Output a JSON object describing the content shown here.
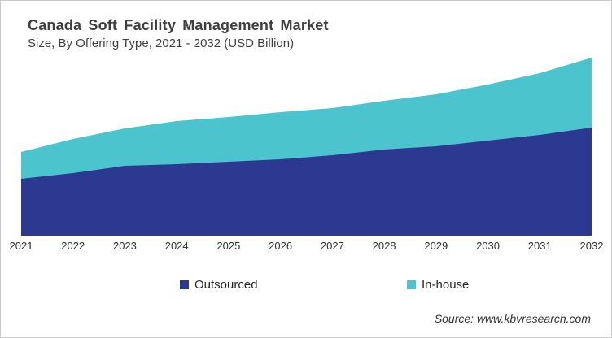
{
  "footer": {
    "source": "Source: www.kbvresearch.com"
  },
  "chart_data": {
    "type": "area",
    "stacked": true,
    "title": "Canada Soft Facility Management Market",
    "subtitle": "Size, By Offering Type, 2021 - 2032 (USD Billion)",
    "categories": [
      "2021",
      "2022",
      "2023",
      "2024",
      "2025",
      "2026",
      "2027",
      "2028",
      "2029",
      "2030",
      "2031",
      "2032"
    ],
    "series": [
      {
        "name": "Outsourced",
        "color": "#2B3A90",
        "values": [
          0.7,
          0.77,
          0.86,
          0.88,
          0.91,
          0.94,
          0.99,
          1.06,
          1.1,
          1.17,
          1.24,
          1.33
        ]
      },
      {
        "name": "In-house",
        "color": "#4BC4CD",
        "values": [
          0.33,
          0.42,
          0.46,
          0.53,
          0.55,
          0.58,
          0.58,
          0.6,
          0.64,
          0.69,
          0.76,
          0.86
        ]
      }
    ],
    "stacked_totals": [
      1.03,
      1.19,
      1.32,
      1.41,
      1.46,
      1.52,
      1.57,
      1.66,
      1.74,
      1.86,
      2.0,
      2.19
    ],
    "xlabel": "",
    "ylabel": "",
    "y_axis_visible": false,
    "grid": false,
    "legend_position": "bottom",
    "note": "No y-axis tick labels are shown in the figure; series values are relative units estimated from stacked area heights (unit implied: USD Billion)."
  }
}
